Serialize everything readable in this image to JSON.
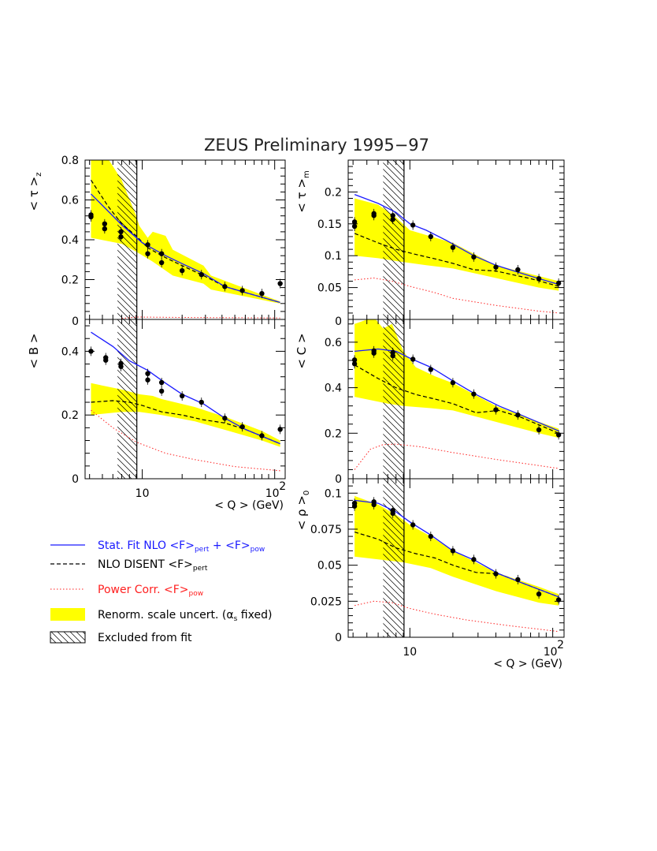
{
  "figure_title": "ZEUS Preliminary 1995−97",
  "colors": {
    "fit": "#1a1aff",
    "nlo": "#000000",
    "power": "#ff2020",
    "band": "#ffff00",
    "data": "#000000"
  },
  "x_axis": {
    "label": "< Q > (GeV)",
    "scale": "log",
    "range": [
      3.7,
      120
    ],
    "tick_labels": [
      "10",
      "10"
    ],
    "tick_label_exp": "2"
  },
  "excluded_region": {
    "q_range": [
      6.5,
      9.1
    ]
  },
  "legend": [
    {
      "key": "fit",
      "text": "Stat. Fit NLO <F>",
      "sub1": "pert",
      "mid": " + <F>",
      "sub2": "pow",
      "color": "#1a1aff"
    },
    {
      "key": "nlo",
      "text": "NLO DISENT <F>",
      "sub1": "pert",
      "color": "#000000"
    },
    {
      "key": "power",
      "text": "Power Corr. <F>",
      "sub1": "pow",
      "color": "#ff2020"
    },
    {
      "key": "band",
      "text": "Renorm. scale uncert. (",
      "greek": "α",
      "sub1": "s",
      "tail": " fixed)",
      "color": "#000000"
    },
    {
      "key": "excluded",
      "text": "Excluded from fit",
      "color": "#000000"
    }
  ],
  "chart_data": [
    {
      "id": "tau_z",
      "type": "line",
      "ylabel": "< τ >",
      "ylabel_sub": "z",
      "ylim": [
        0,
        0.8
      ],
      "y_ticks": [
        0,
        0.2,
        0.4,
        0.6,
        0.8
      ],
      "y_tick_labels": [
        "0",
        "0.2",
        "0.4",
        "0.6",
        "0.8"
      ],
      "data": [
        [
          4.1,
          0.515
        ],
        [
          4.1,
          0.525
        ],
        [
          5.2,
          0.48
        ],
        [
          5.2,
          0.455
        ],
        [
          6.9,
          0.44
        ],
        [
          6.9,
          0.415
        ],
        [
          11,
          0.375
        ],
        [
          11,
          0.33
        ],
        [
          14,
          0.33
        ],
        [
          14,
          0.285
        ],
        [
          20,
          0.245
        ],
        [
          28,
          0.225
        ],
        [
          42,
          0.165
        ],
        [
          57,
          0.145
        ],
        [
          80,
          0.13
        ],
        [
          110,
          0.18
        ]
      ],
      "band_upper": [
        [
          4.1,
          0.8
        ],
        [
          5.6,
          0.8
        ],
        [
          7,
          0.7
        ],
        [
          9,
          0.52
        ],
        [
          9.5,
          0.47
        ],
        [
          11,
          0.41
        ],
        [
          12,
          0.44
        ],
        [
          15,
          0.42
        ],
        [
          17,
          0.35
        ],
        [
          29,
          0.27
        ],
        [
          33,
          0.22
        ],
        [
          100,
          0.1
        ],
        [
          110,
          0.09
        ]
      ],
      "band_lower": [
        [
          4.1,
          0.41
        ],
        [
          7,
          0.38
        ],
        [
          9,
          0.34
        ],
        [
          12,
          0.29
        ],
        [
          17,
          0.22
        ],
        [
          29,
          0.18
        ],
        [
          33,
          0.15
        ],
        [
          100,
          0.085
        ],
        [
          110,
          0.08
        ]
      ],
      "fit": [
        [
          4.1,
          0.63
        ],
        [
          7,
          0.475
        ],
        [
          10,
          0.385
        ],
        [
          15,
          0.32
        ],
        [
          20,
          0.28
        ],
        [
          29,
          0.23
        ],
        [
          42,
          0.165
        ],
        [
          60,
          0.135
        ],
        [
          110,
          0.085
        ]
      ],
      "nlo": [
        [
          4.1,
          0.7
        ],
        [
          5.5,
          0.57
        ],
        [
          7,
          0.48
        ],
        [
          9,
          0.42
        ],
        [
          11,
          0.36
        ],
        [
          15,
          0.31
        ],
        [
          20,
          0.27
        ],
        [
          29,
          0.22
        ],
        [
          42,
          0.165
        ],
        [
          60,
          0.135
        ],
        [
          110,
          0.085
        ]
      ],
      "power": [
        [
          7,
          0.005
        ],
        [
          9,
          0.012
        ],
        [
          20,
          0.01
        ],
        [
          110,
          0.007
        ]
      ]
    },
    {
      "id": "tau_m",
      "type": "line",
      "ylabel": "< τ >",
      "ylabel_sub": "m",
      "ylim": [
        0,
        0.25
      ],
      "y_ticks": [
        0,
        0.05,
        0.1,
        0.15,
        0.2
      ],
      "y_tick_labels": [
        "0",
        "0.05",
        "0.1",
        "0.15",
        "0.2"
      ],
      "data": [
        [
          4.1,
          0.153
        ],
        [
          4.1,
          0.146
        ],
        [
          5.6,
          0.163
        ],
        [
          5.6,
          0.166
        ],
        [
          7.6,
          0.163
        ],
        [
          7.6,
          0.157
        ],
        [
          10.5,
          0.148
        ],
        [
          14,
          0.13
        ],
        [
          20,
          0.113
        ],
        [
          28,
          0.098
        ],
        [
          40,
          0.082
        ],
        [
          57,
          0.078
        ],
        [
          80,
          0.064
        ],
        [
          110,
          0.057
        ]
      ],
      "band_upper": [
        [
          4.1,
          0.19
        ],
        [
          6,
          0.18
        ],
        [
          8,
          0.16
        ],
        [
          10,
          0.14
        ],
        [
          20,
          0.12
        ],
        [
          40,
          0.085
        ],
        [
          80,
          0.068
        ],
        [
          110,
          0.06
        ]
      ],
      "band_lower": [
        [
          4.1,
          0.1
        ],
        [
          6,
          0.096
        ],
        [
          9,
          0.09
        ],
        [
          13,
          0.085
        ],
        [
          20,
          0.08
        ],
        [
          40,
          0.065
        ],
        [
          80,
          0.05
        ],
        [
          110,
          0.045
        ]
      ],
      "fit": [
        [
          4.1,
          0.196
        ],
        [
          6,
          0.182
        ],
        [
          8,
          0.168
        ],
        [
          10,
          0.15
        ],
        [
          13,
          0.14
        ],
        [
          18,
          0.124
        ],
        [
          28,
          0.1
        ],
        [
          40,
          0.085
        ],
        [
          70,
          0.068
        ],
        [
          110,
          0.055
        ]
      ],
      "nlo": [
        [
          4.1,
          0.135
        ],
        [
          6,
          0.12
        ],
        [
          8,
          0.11
        ],
        [
          11,
          0.102
        ],
        [
          15,
          0.095
        ],
        [
          20,
          0.088
        ],
        [
          28,
          0.078
        ],
        [
          40,
          0.076
        ],
        [
          70,
          0.064
        ],
        [
          110,
          0.052
        ]
      ],
      "power": [
        [
          4.1,
          0.062
        ],
        [
          5.6,
          0.065
        ],
        [
          7.5,
          0.06
        ],
        [
          10,
          0.052
        ],
        [
          15,
          0.042
        ],
        [
          20,
          0.033
        ],
        [
          40,
          0.022
        ],
        [
          80,
          0.013
        ],
        [
          110,
          0.01
        ]
      ]
    },
    {
      "id": "B",
      "type": "line",
      "ylabel": "< B >",
      "ylabel_sub": "",
      "ylim": [
        0,
        0.5
      ],
      "y_ticks": [
        0,
        0.2,
        0.4
      ],
      "y_tick_labels": [
        "0",
        "0.2",
        "0.4"
      ],
      "data": [
        [
          4.1,
          0.4
        ],
        [
          5.3,
          0.38
        ],
        [
          5.3,
          0.372
        ],
        [
          6.9,
          0.362
        ],
        [
          6.9,
          0.352
        ],
        [
          11,
          0.33
        ],
        [
          11,
          0.31
        ],
        [
          14,
          0.302
        ],
        [
          14,
          0.275
        ],
        [
          20,
          0.26
        ],
        [
          28,
          0.24
        ],
        [
          42,
          0.19
        ],
        [
          57,
          0.163
        ],
        [
          80,
          0.135
        ],
        [
          110,
          0.155
        ]
      ],
      "band_upper": [
        [
          4.1,
          0.3
        ],
        [
          7,
          0.28
        ],
        [
          9.5,
          0.265
        ],
        [
          12,
          0.26
        ],
        [
          14,
          0.25
        ],
        [
          25,
          0.225
        ],
        [
          45,
          0.19
        ],
        [
          80,
          0.15
        ],
        [
          110,
          0.12
        ]
      ],
      "band_lower": [
        [
          4.1,
          0.2
        ],
        [
          7,
          0.21
        ],
        [
          9.5,
          0.21
        ],
        [
          14,
          0.2
        ],
        [
          25,
          0.18
        ],
        [
          45,
          0.15
        ],
        [
          80,
          0.12
        ],
        [
          110,
          0.1
        ]
      ],
      "fit": [
        [
          4.1,
          0.46
        ],
        [
          6,
          0.415
        ],
        [
          8,
          0.37
        ],
        [
          11,
          0.34
        ],
        [
          15,
          0.3
        ],
        [
          20,
          0.265
        ],
        [
          29,
          0.235
        ],
        [
          42,
          0.19
        ],
        [
          60,
          0.155
        ],
        [
          110,
          0.11
        ]
      ],
      "nlo": [
        [
          4.1,
          0.24
        ],
        [
          6,
          0.245
        ],
        [
          8,
          0.24
        ],
        [
          10,
          0.23
        ],
        [
          14,
          0.21
        ],
        [
          20,
          0.2
        ],
        [
          29,
          0.185
        ],
        [
          42,
          0.175
        ],
        [
          60,
          0.155
        ],
        [
          110,
          0.11
        ]
      ],
      "power": [
        [
          4.1,
          0.215
        ],
        [
          6,
          0.16
        ],
        [
          9,
          0.115
        ],
        [
          15,
          0.08
        ],
        [
          25,
          0.06
        ],
        [
          50,
          0.038
        ],
        [
          110,
          0.025
        ]
      ]
    },
    {
      "id": "C",
      "type": "line",
      "ylabel": "< C >",
      "ylabel_sub": "",
      "ylim": [
        0,
        0.7
      ],
      "y_ticks": [
        0,
        0.2,
        0.4,
        0.6
      ],
      "y_tick_labels": [
        "0",
        "0.2",
        "0.4",
        "0.6"
      ],
      "data": [
        [
          4.1,
          0.522
        ],
        [
          4.1,
          0.505
        ],
        [
          5.6,
          0.562
        ],
        [
          5.6,
          0.552
        ],
        [
          7.6,
          0.555
        ],
        [
          7.6,
          0.54
        ],
        [
          10.5,
          0.525
        ],
        [
          14,
          0.48
        ],
        [
          20,
          0.422
        ],
        [
          28,
          0.372
        ],
        [
          40,
          0.303
        ],
        [
          57,
          0.28
        ],
        [
          80,
          0.215
        ],
        [
          110,
          0.193
        ]
      ],
      "band_upper": [
        [
          4.1,
          0.68
        ],
        [
          5.6,
          0.71
        ],
        [
          6.5,
          0.66
        ],
        [
          7.5,
          0.68
        ],
        [
          9,
          0.56
        ],
        [
          11,
          0.49
        ],
        [
          15,
          0.45
        ],
        [
          20,
          0.42
        ],
        [
          40,
          0.32
        ],
        [
          80,
          0.25
        ],
        [
          110,
          0.22
        ]
      ],
      "band_lower": [
        [
          4.1,
          0.36
        ],
        [
          7,
          0.33
        ],
        [
          9,
          0.32
        ],
        [
          14,
          0.31
        ],
        [
          20,
          0.3
        ],
        [
          40,
          0.25
        ],
        [
          80,
          0.2
        ],
        [
          110,
          0.18
        ]
      ],
      "fit": [
        [
          4.1,
          0.56
        ],
        [
          6,
          0.57
        ],
        [
          8,
          0.56
        ],
        [
          10,
          0.53
        ],
        [
          14,
          0.49
        ],
        [
          20,
          0.43
        ],
        [
          29,
          0.37
        ],
        [
          42,
          0.32
        ],
        [
          60,
          0.28
        ],
        [
          110,
          0.21
        ]
      ],
      "nlo": [
        [
          4.1,
          0.5
        ],
        [
          6,
          0.44
        ],
        [
          8,
          0.4
        ],
        [
          11,
          0.37
        ],
        [
          15,
          0.35
        ],
        [
          20,
          0.33
        ],
        [
          29,
          0.29
        ],
        [
          42,
          0.3
        ],
        [
          60,
          0.27
        ],
        [
          110,
          0.2
        ]
      ],
      "power": [
        [
          4.1,
          0.04
        ],
        [
          5.3,
          0.13
        ],
        [
          6.5,
          0.15
        ],
        [
          8,
          0.152
        ],
        [
          12,
          0.14
        ],
        [
          20,
          0.115
        ],
        [
          40,
          0.085
        ],
        [
          80,
          0.058
        ],
        [
          110,
          0.045
        ]
      ]
    },
    {
      "id": "rho_0",
      "type": "line",
      "ylabel": "< ρ >",
      "ylabel_sub": "0",
      "ylim": [
        0,
        0.11
      ],
      "y_ticks": [
        0,
        0.025,
        0.05,
        0.075,
        0.1
      ],
      "y_tick_labels": [
        "0",
        "0.025",
        "0.05",
        "0.075",
        "0.1"
      ],
      "data": [
        [
          4.1,
          0.091
        ],
        [
          4.1,
          0.093
        ],
        [
          5.6,
          0.094
        ],
        [
          5.6,
          0.092
        ],
        [
          7.6,
          0.088
        ],
        [
          7.6,
          0.086
        ],
        [
          10.5,
          0.078
        ],
        [
          14,
          0.07
        ],
        [
          20,
          0.06
        ],
        [
          28,
          0.054
        ],
        [
          40,
          0.044
        ],
        [
          57,
          0.04
        ],
        [
          80,
          0.03
        ],
        [
          110,
          0.026
        ]
      ],
      "band_upper": [
        [
          4.1,
          0.098
        ],
        [
          6,
          0.092
        ],
        [
          8,
          0.085
        ],
        [
          10,
          0.078
        ],
        [
          14,
          0.07
        ],
        [
          20,
          0.06
        ],
        [
          40,
          0.045
        ],
        [
          80,
          0.035
        ],
        [
          110,
          0.03
        ]
      ],
      "band_lower": [
        [
          4.1,
          0.056
        ],
        [
          6,
          0.054
        ],
        [
          9,
          0.052
        ],
        [
          14,
          0.048
        ],
        [
          20,
          0.042
        ],
        [
          40,
          0.032
        ],
        [
          80,
          0.024
        ],
        [
          110,
          0.022
        ]
      ],
      "fit": [
        [
          4.1,
          0.095
        ],
        [
          6,
          0.093
        ],
        [
          8,
          0.087
        ],
        [
          10,
          0.08
        ],
        [
          14,
          0.071
        ],
        [
          20,
          0.06
        ],
        [
          29,
          0.053
        ],
        [
          42,
          0.044
        ],
        [
          60,
          0.038
        ],
        [
          110,
          0.028
        ]
      ],
      "nlo": [
        [
          4.1,
          0.073
        ],
        [
          6,
          0.068
        ],
        [
          8,
          0.062
        ],
        [
          11,
          0.058
        ],
        [
          15,
          0.055
        ],
        [
          20,
          0.05
        ],
        [
          29,
          0.045
        ],
        [
          42,
          0.044
        ],
        [
          60,
          0.038
        ],
        [
          110,
          0.028
        ]
      ],
      "power": [
        [
          4.1,
          0.022
        ],
        [
          5.6,
          0.025
        ],
        [
          7.5,
          0.024
        ],
        [
          10,
          0.02
        ],
        [
          15,
          0.016
        ],
        [
          25,
          0.012
        ],
        [
          50,
          0.008
        ],
        [
          110,
          0.004
        ]
      ]
    }
  ]
}
